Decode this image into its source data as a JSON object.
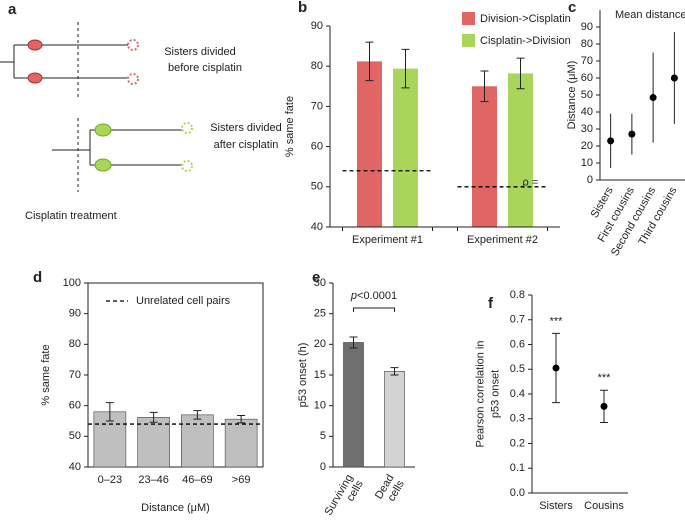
{
  "diagram": {
    "panel": "a",
    "before_label": [
      "Sisters divided",
      "before cisplatin"
    ],
    "after_label": [
      "Sisters divided",
      "after cisplatin"
    ],
    "treatment_label": "Cisplatin treatment"
  },
  "chart_data": [
    {
      "panel": "b",
      "type": "bar",
      "ylabel": "% same fate",
      "categories": [
        "Experiment #1",
        "Experiment #2"
      ],
      "series": [
        {
          "name": "Division->Cisplatin",
          "color": "#e06666",
          "values": [
            81.2,
            75.0
          ],
          "errors": [
            4.8,
            3.8
          ]
        },
        {
          "name": "Cisplatin->Division",
          "color": "#a9d55a",
          "values": [
            79.4,
            78.2
          ],
          "errors": [
            4.8,
            3.8
          ]
        }
      ],
      "reference_values": [
        54,
        50
      ],
      "annotation": "ρ =",
      "ylim": [
        40,
        90
      ],
      "yticks": [
        40,
        50,
        60,
        70,
        80,
        90
      ],
      "legend": "top-right"
    },
    {
      "panel": "c",
      "type": "dot",
      "title": "Mean distance",
      "ylabel": "Distance (μM)",
      "categories": [
        "Sisters",
        "First cousins",
        "Second cousins",
        "Third cousins"
      ],
      "values": [
        23,
        27,
        48.5,
        60
      ],
      "lower": [
        7,
        15,
        22,
        33
      ],
      "upper": [
        39,
        39,
        75,
        87
      ],
      "color": "#000000",
      "ylim": [
        0,
        100
      ],
      "yticks": [
        0,
        10,
        20,
        30,
        40,
        50,
        60,
        70,
        80,
        90
      ]
    },
    {
      "panel": "d",
      "type": "bar",
      "xlabel": "Distance (μM)",
      "ylabel": "% same fate",
      "categories": [
        "0–23",
        "23–46",
        "46–69",
        ">69"
      ],
      "values": [
        58,
        56.2,
        57,
        55.6
      ],
      "errors": [
        3,
        1.6,
        1.4,
        1.2
      ],
      "color": "#bfbfbf",
      "reference_line": {
        "value": 54,
        "label": "Unrelated cell pairs"
      },
      "ylim": [
        40,
        100
      ],
      "yticks": [
        40,
        50,
        60,
        70,
        80,
        90,
        100
      ]
    },
    {
      "panel": "e",
      "type": "bar",
      "ylabel": "p53 onset (h)",
      "categories": [
        "Surviving cells",
        "Dead cells"
      ],
      "values": [
        20.3,
        15.6
      ],
      "errors": [
        0.9,
        0.6
      ],
      "colors": [
        "#6f6f6f",
        "#d3d3d3"
      ],
      "annotation": {
        "italic": "p",
        "text": "<0.0001"
      },
      "ylim": [
        0,
        30
      ],
      "yticks": [
        0,
        5,
        10,
        15,
        20,
        25,
        30
      ]
    },
    {
      "panel": "f",
      "type": "dot",
      "ylabel": "Pearson correlation in p53 onset",
      "categories": [
        "Sisters",
        "Cousins"
      ],
      "values": [
        0.505,
        0.35
      ],
      "lower": [
        0.365,
        0.285
      ],
      "upper": [
        0.645,
        0.415
      ],
      "annotations": [
        "***",
        "***"
      ],
      "color": "#000000",
      "ylim": [
        0,
        0.8
      ],
      "yticks": [
        {
          "value": 0,
          "label": "0.0"
        },
        0.1,
        0.2,
        0.3,
        0.4,
        0.5,
        0.6,
        0.7,
        0.8
      ]
    }
  ]
}
